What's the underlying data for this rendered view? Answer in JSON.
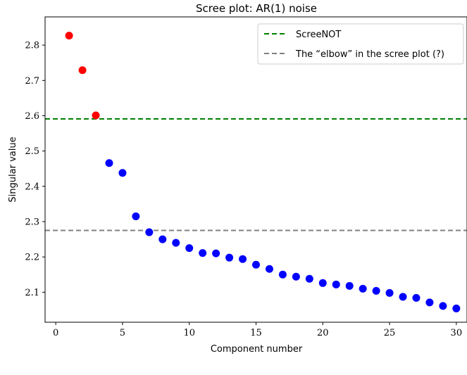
{
  "chart_data": {
    "type": "scatter",
    "title": "Scree plot: AR(1) noise",
    "xlabel": "Component number",
    "ylabel": "Singular value",
    "xlim": [
      -0.8,
      30.8
    ],
    "ylim": [
      2.015,
      2.88
    ],
    "xticks": [
      0,
      5,
      10,
      15,
      20,
      25,
      30
    ],
    "yticks": [
      2.1,
      2.2,
      2.3,
      2.4,
      2.5,
      2.6,
      2.7,
      2.8
    ],
    "grid": false,
    "legend_position": "top-right",
    "series": [
      {
        "color": "#ff0000",
        "x": [
          1,
          2,
          3
        ],
        "y": [
          2.827,
          2.729,
          2.601
        ]
      },
      {
        "color": "#0000ff",
        "x": [
          4,
          5,
          6,
          7,
          8,
          9,
          10,
          11,
          12,
          13,
          14,
          15,
          16,
          17,
          18,
          19,
          20,
          21,
          22,
          23,
          24,
          25,
          26,
          27,
          28,
          29,
          30
        ],
        "y": [
          2.466,
          2.438,
          2.315,
          2.27,
          2.25,
          2.24,
          2.225,
          2.211,
          2.21,
          2.198,
          2.194,
          2.178,
          2.166,
          2.15,
          2.144,
          2.138,
          2.126,
          2.122,
          2.118,
          2.11,
          2.104,
          2.098,
          2.087,
          2.084,
          2.071,
          2.061,
          2.054
        ]
      }
    ],
    "hlines": [
      {
        "name": "ScreeNOT",
        "y": 2.591,
        "color": "#008000",
        "style": "dashed"
      },
      {
        "name": "The “elbow” in the scree plot (?)",
        "y": 2.275,
        "color": "#808080",
        "style": "dashed"
      }
    ]
  }
}
